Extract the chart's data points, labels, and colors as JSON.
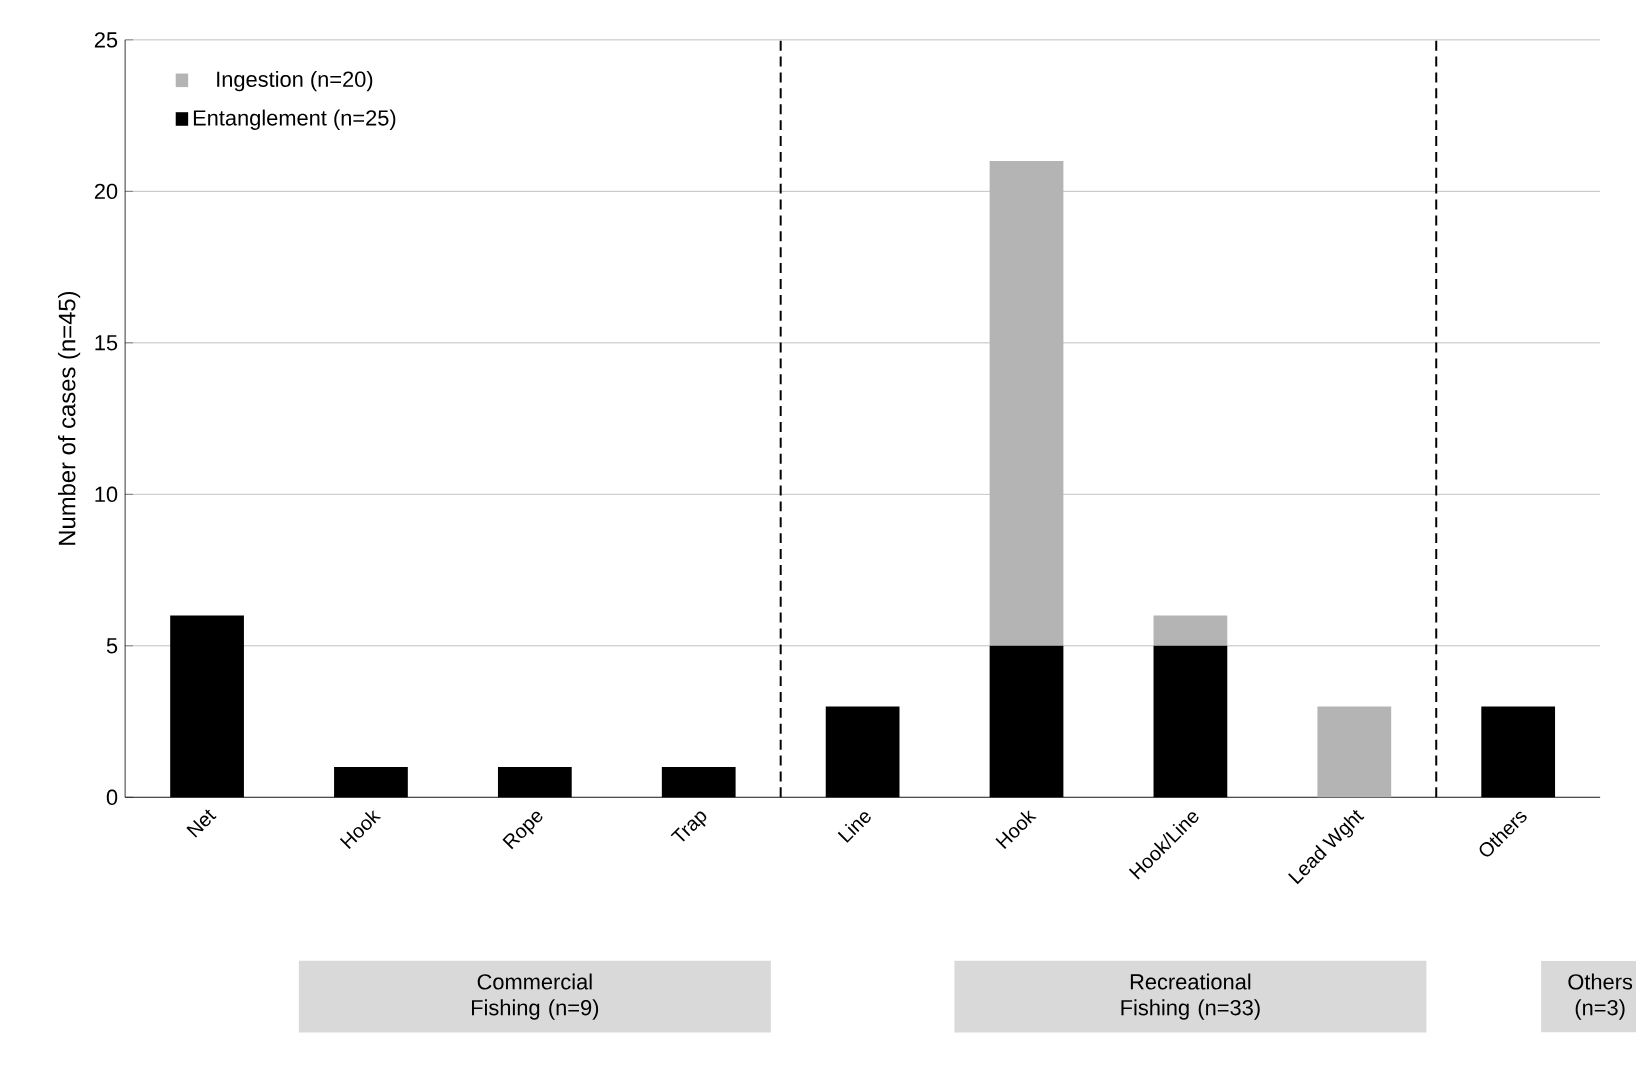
{
  "chart_data": {
    "type": "bar",
    "stacked": true,
    "ylabel": "Number of cases (n=45)",
    "categories": [
      "Net",
      "Hook",
      "Rope",
      "Trap",
      "Line",
      "Hook",
      "Hook/Line",
      "Lead Wght",
      "Others"
    ],
    "series": [
      {
        "name": "Entanglement (n=25)",
        "color": "#000000",
        "values": [
          6,
          1,
          1,
          1,
          3,
          5,
          5,
          0,
          3
        ]
      },
      {
        "name": "Ingestion (n=20)",
        "color": "#b4b4b4",
        "values": [
          0,
          0,
          0,
          0,
          0,
          16,
          1,
          3,
          0
        ]
      }
    ],
    "ylim": [
      0,
      25
    ],
    "yticks": [
      0,
      5,
      10,
      15,
      20,
      25
    ],
    "grid": "y",
    "legend": "top left",
    "annotations": [
      "Commercial Fishing (n=9)",
      "Recreational Fishing (n=33)",
      "Others (n=3)"
    ]
  }
}
